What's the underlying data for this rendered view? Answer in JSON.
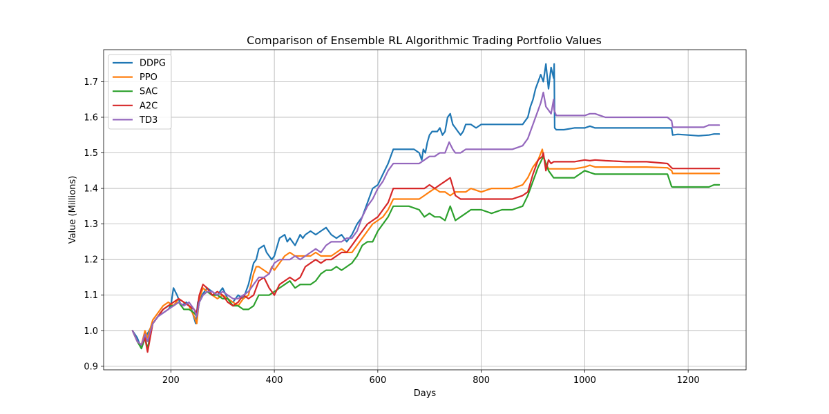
{
  "chart_data": {
    "type": "line",
    "title": "Comparison of Ensemble RL Algorithmic Trading Portfolio Values",
    "xlabel": "Days",
    "ylabel": "Value (Millions)",
    "xlim": [
      70,
      1312
    ],
    "ylim": [
      0.89,
      1.79
    ],
    "xticks": [
      "200",
      "400",
      "600",
      "800",
      "1000",
      "1200"
    ],
    "yticks": [
      "0.9",
      "1.0",
      "1.1",
      "1.2",
      "1.3",
      "1.4",
      "1.5",
      "1.6",
      "1.7"
    ],
    "grid": true,
    "legend_position": "upper-left",
    "series": [
      {
        "name": "DDPG",
        "color": "#1f77b4",
        "x": [
          126,
          135,
          143,
          150,
          158,
          165,
          175,
          185,
          195,
          200,
          205,
          212,
          220,
          230,
          240,
          248,
          252,
          260,
          270,
          280,
          290,
          300,
          310,
          320,
          330,
          340,
          350,
          360,
          365,
          370,
          380,
          385,
          390,
          395,
          400,
          410,
          420,
          425,
          430,
          440,
          450,
          455,
          460,
          470,
          480,
          490,
          500,
          510,
          520,
          530,
          540,
          550,
          560,
          570,
          580,
          590,
          600,
          610,
          620,
          630,
          640,
          650,
          660,
          670,
          680,
          685,
          688,
          692,
          696,
          700,
          705,
          710,
          715,
          720,
          725,
          730,
          735,
          740,
          745,
          750,
          755,
          760,
          765,
          770,
          780,
          790,
          800,
          810,
          820,
          830,
          840,
          850,
          860,
          870,
          880,
          890,
          895,
          900,
          905,
          910,
          915,
          920,
          925,
          930,
          935,
          940,
          941,
          942,
          945,
          960,
          980,
          1000,
          1010,
          1020,
          1040,
          1060,
          1080,
          1100,
          1130,
          1160,
          1168,
          1170,
          1180,
          1200,
          1220,
          1240,
          1250,
          1260
        ],
        "values": [
          1.0,
          0.98,
          0.95,
          0.98,
          1.0,
          1.02,
          1.04,
          1.05,
          1.06,
          1.07,
          1.12,
          1.1,
          1.07,
          1.08,
          1.06,
          1.02,
          1.08,
          1.1,
          1.12,
          1.11,
          1.1,
          1.12,
          1.09,
          1.08,
          1.1,
          1.09,
          1.13,
          1.19,
          1.2,
          1.23,
          1.24,
          1.22,
          1.21,
          1.2,
          1.21,
          1.26,
          1.27,
          1.25,
          1.26,
          1.24,
          1.27,
          1.26,
          1.27,
          1.28,
          1.27,
          1.28,
          1.29,
          1.27,
          1.26,
          1.27,
          1.25,
          1.27,
          1.3,
          1.32,
          1.36,
          1.4,
          1.41,
          1.44,
          1.47,
          1.51,
          1.51,
          1.51,
          1.51,
          1.51,
          1.5,
          1.48,
          1.51,
          1.5,
          1.53,
          1.55,
          1.56,
          1.56,
          1.56,
          1.57,
          1.55,
          1.56,
          1.6,
          1.61,
          1.58,
          1.57,
          1.56,
          1.55,
          1.56,
          1.58,
          1.58,
          1.57,
          1.58,
          1.58,
          1.58,
          1.58,
          1.58,
          1.58,
          1.58,
          1.58,
          1.58,
          1.6,
          1.63,
          1.65,
          1.68,
          1.7,
          1.72,
          1.7,
          1.75,
          1.68,
          1.74,
          1.71,
          1.75,
          1.57,
          1.565,
          1.565,
          1.57,
          1.57,
          1.575,
          1.57,
          1.57,
          1.57,
          1.57,
          1.57,
          1.57,
          1.57,
          1.57,
          1.55,
          1.552,
          1.55,
          1.548,
          1.55,
          1.553,
          1.553
        ]
      },
      {
        "name": "PPO",
        "color": "#ff7f0e",
        "x": [
          126,
          135,
          143,
          150,
          155,
          165,
          175,
          185,
          195,
          205,
          215,
          225,
          235,
          245,
          250,
          255,
          262,
          270,
          280,
          290,
          300,
          310,
          320,
          330,
          340,
          350,
          355,
          360,
          365,
          370,
          380,
          390,
          395,
          400,
          410,
          420,
          430,
          440,
          450,
          460,
          470,
          480,
          490,
          500,
          510,
          520,
          530,
          540,
          550,
          560,
          570,
          580,
          590,
          600,
          610,
          620,
          630,
          640,
          660,
          680,
          690,
          700,
          710,
          720,
          730,
          740,
          750,
          760,
          770,
          780,
          800,
          820,
          840,
          860,
          880,
          890,
          900,
          910,
          918,
          920,
          925,
          930,
          940,
          950,
          960,
          980,
          1000,
          1010,
          1020,
          1040,
          1080,
          1120,
          1160,
          1168,
          1170,
          1200,
          1230,
          1260
        ],
        "values": [
          1.0,
          0.97,
          0.96,
          1.0,
          0.98,
          1.03,
          1.05,
          1.07,
          1.08,
          1.07,
          1.09,
          1.08,
          1.07,
          1.04,
          1.02,
          1.09,
          1.12,
          1.11,
          1.1,
          1.09,
          1.1,
          1.09,
          1.08,
          1.07,
          1.09,
          1.1,
          1.13,
          1.16,
          1.18,
          1.18,
          1.17,
          1.16,
          1.18,
          1.17,
          1.19,
          1.21,
          1.22,
          1.21,
          1.21,
          1.21,
          1.21,
          1.22,
          1.21,
          1.21,
          1.21,
          1.22,
          1.23,
          1.22,
          1.22,
          1.24,
          1.26,
          1.28,
          1.3,
          1.31,
          1.32,
          1.34,
          1.37,
          1.37,
          1.37,
          1.37,
          1.38,
          1.39,
          1.4,
          1.39,
          1.39,
          1.38,
          1.39,
          1.39,
          1.39,
          1.4,
          1.39,
          1.4,
          1.4,
          1.4,
          1.41,
          1.43,
          1.46,
          1.48,
          1.51,
          1.49,
          1.47,
          1.455,
          1.455,
          1.455,
          1.455,
          1.455,
          1.46,
          1.465,
          1.46,
          1.46,
          1.46,
          1.46,
          1.458,
          1.45,
          1.442,
          1.442,
          1.442,
          1.442
        ]
      },
      {
        "name": "SAC",
        "color": "#2ca02c",
        "x": [
          126,
          135,
          143,
          150,
          155,
          165,
          175,
          185,
          195,
          205,
          215,
          225,
          235,
          245,
          250,
          255,
          262,
          270,
          280,
          290,
          300,
          310,
          320,
          330,
          340,
          350,
          360,
          370,
          380,
          390,
          400,
          410,
          420,
          430,
          440,
          450,
          460,
          470,
          480,
          490,
          500,
          510,
          520,
          530,
          540,
          550,
          560,
          570,
          580,
          590,
          600,
          610,
          620,
          630,
          640,
          660,
          680,
          690,
          700,
          710,
          720,
          730,
          740,
          750,
          760,
          770,
          780,
          800,
          820,
          840,
          860,
          880,
          890,
          900,
          910,
          920,
          925,
          930,
          940,
          960,
          980,
          1000,
          1010,
          1020,
          1040,
          1080,
          1120,
          1160,
          1168,
          1170,
          1200,
          1220,
          1240,
          1250,
          1260
        ],
        "values": [
          1.0,
          0.97,
          0.95,
          0.98,
          0.95,
          1.02,
          1.04,
          1.06,
          1.07,
          1.07,
          1.08,
          1.06,
          1.06,
          1.05,
          1.04,
          1.08,
          1.1,
          1.11,
          1.1,
          1.1,
          1.09,
          1.09,
          1.07,
          1.07,
          1.06,
          1.06,
          1.07,
          1.1,
          1.1,
          1.1,
          1.11,
          1.12,
          1.13,
          1.14,
          1.12,
          1.13,
          1.13,
          1.13,
          1.14,
          1.16,
          1.17,
          1.17,
          1.18,
          1.17,
          1.18,
          1.19,
          1.21,
          1.24,
          1.25,
          1.25,
          1.28,
          1.3,
          1.32,
          1.35,
          1.35,
          1.35,
          1.34,
          1.32,
          1.33,
          1.32,
          1.32,
          1.31,
          1.35,
          1.31,
          1.32,
          1.33,
          1.34,
          1.34,
          1.33,
          1.34,
          1.34,
          1.35,
          1.38,
          1.42,
          1.46,
          1.49,
          1.47,
          1.45,
          1.43,
          1.43,
          1.43,
          1.45,
          1.445,
          1.44,
          1.44,
          1.44,
          1.44,
          1.44,
          1.405,
          1.404,
          1.404,
          1.404,
          1.404,
          1.41,
          1.41
        ]
      },
      {
        "name": "A2C",
        "color": "#d62728",
        "x": [
          126,
          135,
          143,
          150,
          155,
          165,
          175,
          185,
          195,
          205,
          215,
          225,
          235,
          245,
          250,
          255,
          262,
          270,
          280,
          290,
          300,
          310,
          320,
          330,
          340,
          350,
          360,
          370,
          380,
          390,
          400,
          410,
          420,
          430,
          440,
          450,
          460,
          470,
          480,
          490,
          500,
          510,
          520,
          530,
          540,
          550,
          560,
          570,
          580,
          590,
          600,
          610,
          620,
          630,
          640,
          660,
          680,
          690,
          700,
          710,
          720,
          730,
          740,
          750,
          760,
          770,
          780,
          800,
          820,
          840,
          860,
          880,
          890,
          900,
          910,
          918,
          920,
          925,
          930,
          935,
          940,
          960,
          980,
          1000,
          1010,
          1020,
          1040,
          1080,
          1120,
          1160,
          1168,
          1170,
          1200,
          1230,
          1260
        ],
        "values": [
          1.0,
          0.97,
          0.96,
          0.98,
          0.94,
          1.02,
          1.04,
          1.06,
          1.07,
          1.08,
          1.09,
          1.08,
          1.07,
          1.06,
          1.05,
          1.1,
          1.13,
          1.12,
          1.1,
          1.11,
          1.1,
          1.08,
          1.07,
          1.08,
          1.1,
          1.09,
          1.1,
          1.14,
          1.15,
          1.12,
          1.1,
          1.13,
          1.14,
          1.15,
          1.14,
          1.15,
          1.18,
          1.19,
          1.2,
          1.19,
          1.2,
          1.2,
          1.21,
          1.22,
          1.22,
          1.24,
          1.26,
          1.28,
          1.3,
          1.31,
          1.32,
          1.34,
          1.36,
          1.4,
          1.4,
          1.4,
          1.4,
          1.4,
          1.41,
          1.4,
          1.41,
          1.42,
          1.43,
          1.38,
          1.37,
          1.37,
          1.37,
          1.37,
          1.37,
          1.37,
          1.37,
          1.38,
          1.39,
          1.44,
          1.48,
          1.49,
          1.5,
          1.45,
          1.48,
          1.47,
          1.475,
          1.475,
          1.475,
          1.48,
          1.478,
          1.48,
          1.478,
          1.475,
          1.475,
          1.47,
          1.458,
          1.456,
          1.456,
          1.456,
          1.456
        ]
      },
      {
        "name": "TD3",
        "color": "#9467bd",
        "x": [
          126,
          135,
          143,
          150,
          155,
          165,
          175,
          185,
          195,
          205,
          215,
          225,
          235,
          245,
          250,
          255,
          262,
          270,
          280,
          290,
          300,
          310,
          320,
          330,
          340,
          350,
          360,
          370,
          380,
          390,
          400,
          410,
          420,
          430,
          440,
          450,
          460,
          470,
          480,
          490,
          500,
          510,
          520,
          530,
          540,
          550,
          560,
          570,
          580,
          590,
          600,
          610,
          620,
          630,
          640,
          660,
          680,
          690,
          700,
          710,
          720,
          730,
          738,
          745,
          750,
          760,
          770,
          780,
          800,
          820,
          840,
          860,
          880,
          890,
          900,
          905,
          910,
          915,
          920,
          925,
          930,
          935,
          940,
          941,
          945,
          960,
          980,
          1000,
          1010,
          1020,
          1030,
          1040,
          1080,
          1120,
          1160,
          1168,
          1170,
          1200,
          1230,
          1240,
          1250,
          1260
        ],
        "values": [
          1.0,
          0.97,
          0.96,
          0.99,
          0.97,
          1.02,
          1.04,
          1.05,
          1.06,
          1.07,
          1.08,
          1.07,
          1.08,
          1.06,
          1.04,
          1.08,
          1.1,
          1.11,
          1.11,
          1.1,
          1.11,
          1.1,
          1.09,
          1.09,
          1.1,
          1.11,
          1.13,
          1.15,
          1.15,
          1.16,
          1.19,
          1.2,
          1.2,
          1.2,
          1.21,
          1.2,
          1.21,
          1.22,
          1.23,
          1.22,
          1.24,
          1.25,
          1.25,
          1.25,
          1.26,
          1.26,
          1.28,
          1.32,
          1.35,
          1.37,
          1.4,
          1.42,
          1.45,
          1.47,
          1.47,
          1.47,
          1.47,
          1.48,
          1.49,
          1.49,
          1.5,
          1.5,
          1.53,
          1.51,
          1.5,
          1.5,
          1.51,
          1.51,
          1.51,
          1.51,
          1.51,
          1.51,
          1.52,
          1.54,
          1.58,
          1.6,
          1.62,
          1.64,
          1.67,
          1.63,
          1.62,
          1.61,
          1.65,
          1.62,
          1.605,
          1.605,
          1.605,
          1.605,
          1.61,
          1.61,
          1.605,
          1.6,
          1.6,
          1.6,
          1.6,
          1.59,
          1.572,
          1.572,
          1.572,
          1.578,
          1.578,
          1.578
        ]
      }
    ]
  }
}
